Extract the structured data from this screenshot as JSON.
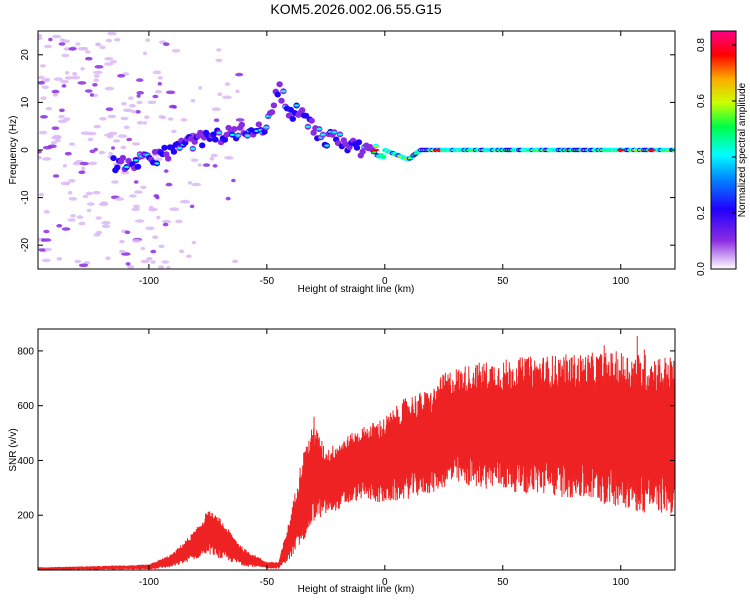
{
  "title": "KOM5.2026.002.06.55.G15",
  "colors": {
    "snr_line": "#ee2222",
    "colormap": [
      "#ffffff",
      "#d9b8f5",
      "#8a2be2",
      "#2200ff",
      "#0088ff",
      "#00ffff",
      "#00ff44",
      "#ccff00",
      "#ffaa00",
      "#ff0000",
      "#ff0088"
    ]
  },
  "chart_data": [
    {
      "type": "heatmap",
      "name": "spectrogram",
      "xlabel": "Height of straight line (km)",
      "ylabel": "Frequency (Hz)",
      "xlim": [
        -147,
        123
      ],
      "ylim": [
        -25,
        25
      ],
      "xticks": [
        -100,
        -50,
        0,
        50,
        100
      ],
      "xtick_labels": [
        "-100",
        "-50",
        "0",
        "50",
        "100"
      ],
      "yticks": [
        -20,
        -10,
        0,
        10,
        20
      ],
      "ytick_labels": [
        "-20",
        "-10",
        "0",
        "10",
        "20"
      ],
      "colorbar": {
        "label": "Normalized spectral amplitude",
        "range": [
          0,
          0.85
        ],
        "ticks": [
          0.0,
          0.2,
          0.4,
          0.6,
          0.8
        ],
        "tick_labels": [
          "0.0",
          "0.2",
          "0.4",
          "0.6",
          "0.8"
        ]
      },
      "ridge": {
        "x": [
          -110,
          -100,
          -90,
          -80,
          -70,
          -60,
          -50,
          -45,
          -40,
          -35,
          -30,
          -25,
          -20,
          -15,
          -10,
          -5,
          0,
          5,
          10,
          15,
          20,
          30,
          50,
          80,
          100,
          123
        ],
        "y": [
          -3,
          -2,
          0,
          2,
          3,
          4,
          5,
          13,
          8,
          8,
          4,
          2,
          3,
          1,
          0,
          0,
          0,
          -1,
          -2,
          0,
          0,
          0,
          0,
          0,
          0,
          0
        ]
      }
    },
    {
      "type": "line",
      "name": "snr",
      "xlabel": "Height of straight line (km)",
      "ylabel": "SNR (v/v)",
      "xlim": [
        -147,
        123
      ],
      "ylim": [
        0,
        880
      ],
      "xticks": [
        -100,
        -50,
        0,
        50,
        100
      ],
      "xtick_labels": [
        "-100",
        "-50",
        "0",
        "50",
        "100"
      ],
      "yticks": [
        200,
        400,
        600,
        800
      ],
      "ytick_labels": [
        "200",
        "400",
        "600",
        "800"
      ],
      "series": [
        {
          "name": "SNR upper envelope",
          "x": [
            -147,
            -120,
            -100,
            -90,
            -80,
            -75,
            -70,
            -60,
            -50,
            -45,
            -40,
            -35,
            -30,
            -25,
            -20,
            -10,
            0,
            10,
            20,
            25,
            30,
            40,
            50,
            60,
            80,
            100,
            110,
            123
          ],
          "y": [
            10,
            15,
            20,
            60,
            150,
            220,
            190,
            80,
            30,
            30,
            200,
            420,
            540,
            440,
            470,
            520,
            560,
            640,
            660,
            720,
            740,
            760,
            770,
            780,
            790,
            800,
            790,
            780
          ]
        },
        {
          "name": "SNR lower envelope",
          "x": [
            -147,
            -120,
            -100,
            -90,
            -80,
            -75,
            -70,
            -60,
            -50,
            -45,
            -40,
            -35,
            -30,
            -25,
            -20,
            -10,
            0,
            10,
            20,
            25,
            30,
            40,
            50,
            60,
            80,
            100,
            110,
            123
          ],
          "y": [
            0,
            2,
            2,
            10,
            40,
            60,
            40,
            15,
            5,
            5,
            40,
            100,
            180,
            200,
            220,
            260,
            240,
            260,
            280,
            300,
            310,
            300,
            290,
            280,
            260,
            230,
            210,
            200
          ]
        }
      ]
    }
  ]
}
